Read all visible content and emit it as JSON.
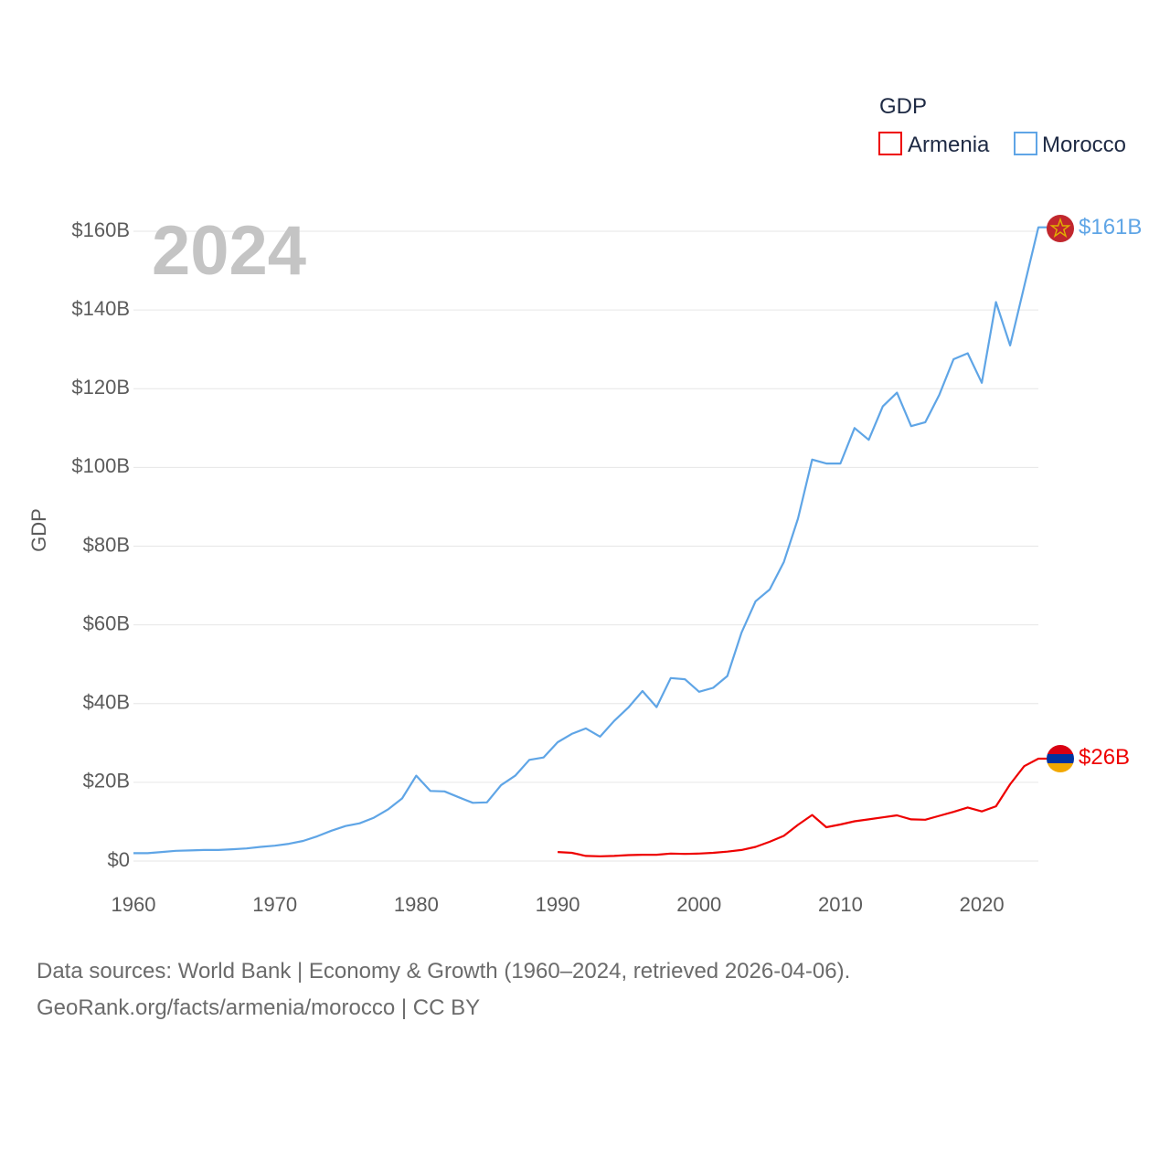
{
  "chart_data": {
    "type": "line",
    "ylabel": "GDP",
    "year_label": "2024",
    "ylim": [
      0,
      160
    ],
    "y_ticks": [
      "$0",
      "$20B",
      "$40B",
      "$60B",
      "$80B",
      "$100B",
      "$120B",
      "$140B",
      "$160B"
    ],
    "x_ticks": [
      "1960",
      "1970",
      "1980",
      "1990",
      "2000",
      "2010",
      "2020"
    ],
    "xlim": [
      1960,
      2024
    ],
    "legend": {
      "title": "GDP",
      "position": "top-right"
    },
    "series": [
      {
        "name": "Armenia",
        "color": "#ee0000",
        "end_label": "$26B",
        "flag_icon": "armenia-flag-icon",
        "x": [
          1990,
          1991,
          1992,
          1993,
          1994,
          1995,
          1996,
          1997,
          1998,
          1999,
          2000,
          2001,
          2002,
          2003,
          2004,
          2005,
          2006,
          2007,
          2008,
          2009,
          2010,
          2011,
          2012,
          2013,
          2014,
          2015,
          2016,
          2017,
          2018,
          2019,
          2020,
          2021,
          2022,
          2023,
          2024
        ],
        "values": [
          2.3,
          2.1,
          1.3,
          1.2,
          1.3,
          1.5,
          1.6,
          1.6,
          1.9,
          1.8,
          1.9,
          2.1,
          2.4,
          2.8,
          3.6,
          4.9,
          6.4,
          9.2,
          11.7,
          8.6,
          9.3,
          10.1,
          10.6,
          11.1,
          11.6,
          10.6,
          10.5,
          11.5,
          12.5,
          13.6,
          12.6,
          13.9,
          19.5,
          24.1,
          26.0
        ]
      },
      {
        "name": "Morocco",
        "color": "#5fa5e6",
        "end_label": "$161B",
        "flag_icon": "morocco-flag-icon",
        "x": [
          1960,
          1961,
          1962,
          1963,
          1964,
          1965,
          1966,
          1967,
          1968,
          1969,
          1970,
          1971,
          1972,
          1973,
          1974,
          1975,
          1976,
          1977,
          1978,
          1979,
          1980,
          1981,
          1982,
          1983,
          1984,
          1985,
          1986,
          1987,
          1988,
          1989,
          1990,
          1991,
          1992,
          1993,
          1994,
          1995,
          1996,
          1997,
          1998,
          1999,
          2000,
          2001,
          2002,
          2003,
          2004,
          2005,
          2006,
          2007,
          2008,
          2009,
          2010,
          2011,
          2012,
          2013,
          2014,
          2015,
          2016,
          2017,
          2018,
          2019,
          2020,
          2021,
          2022,
          2023,
          2024
        ],
        "values": [
          2.0,
          2.0,
          2.3,
          2.6,
          2.7,
          2.8,
          2.8,
          3.0,
          3.2,
          3.6,
          3.9,
          4.4,
          5.1,
          6.3,
          7.7,
          8.9,
          9.6,
          11.0,
          13.1,
          15.9,
          21.7,
          17.8,
          17.7,
          16.2,
          14.8,
          14.9,
          19.3,
          21.7,
          25.7,
          26.3,
          30.2,
          32.3,
          33.7,
          31.6,
          35.6,
          39.0,
          43.2,
          39.1,
          46.5,
          46.2,
          43.0,
          44.0,
          47.0,
          58.0,
          66.0,
          69.0,
          76.0,
          87.0,
          102.0,
          101.0,
          101.0,
          110.0,
          107.0,
          115.5,
          119.0,
          110.5,
          111.5,
          118.5,
          127.5,
          129.0,
          121.5,
          142.0,
          131.0,
          146.0,
          161.0
        ]
      }
    ]
  },
  "source": {
    "line1": "Data sources: World Bank | Economy & Growth (1960–2024, retrieved 2026-04-06).",
    "line2": "GeoRank.org/facts/armenia/morocco | CC BY"
  }
}
